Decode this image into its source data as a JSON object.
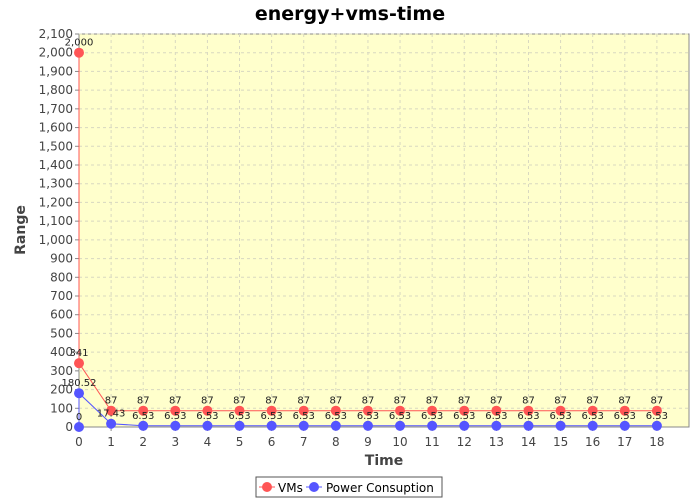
{
  "chart_data": {
    "type": "line",
    "title": "energy+vms-time",
    "xlabel": "Time",
    "ylabel": "Range",
    "xlim": [
      0,
      19
    ],
    "ylim": [
      0,
      2100
    ],
    "x_ticks": [
      0,
      1,
      2,
      3,
      4,
      5,
      6,
      7,
      8,
      9,
      10,
      11,
      12,
      13,
      14,
      15,
      16,
      17,
      18
    ],
    "y_ticks": [
      0,
      100,
      200,
      300,
      400,
      500,
      600,
      700,
      800,
      900,
      1000,
      1100,
      1200,
      1300,
      1400,
      1500,
      1600,
      1700,
      1800,
      1900,
      2000,
      2100
    ],
    "x_tick_labels": [
      "0",
      "1",
      "2",
      "3",
      "4",
      "5",
      "6",
      "7",
      "8",
      "9",
      "10",
      "11",
      "12",
      "13",
      "14",
      "15",
      "16",
      "17",
      "18"
    ],
    "y_tick_labels": [
      "0",
      "100",
      "200",
      "300",
      "400",
      "500",
      "600",
      "700",
      "800",
      "900",
      "1,000",
      "1,100",
      "1,200",
      "1,300",
      "1,400",
      "1,500",
      "1,600",
      "1,700",
      "1,800",
      "1,900",
      "2,000",
      "2,100"
    ],
    "grid": true,
    "legend_position": "bottom",
    "background_color": "#ffffcc",
    "series": [
      {
        "name": "VMs",
        "color": "#ff5555",
        "points": [
          {
            "x": 0,
            "y": 2000,
            "label": "2,000"
          },
          {
            "x": 0,
            "y": 341,
            "label": "341"
          },
          {
            "x": 1,
            "y": 87,
            "label": "87"
          },
          {
            "x": 2,
            "y": 87,
            "label": "87"
          },
          {
            "x": 3,
            "y": 87,
            "label": "87"
          },
          {
            "x": 4,
            "y": 87,
            "label": "87"
          },
          {
            "x": 5,
            "y": 87,
            "label": "87"
          },
          {
            "x": 6,
            "y": 87,
            "label": "87"
          },
          {
            "x": 7,
            "y": 87,
            "label": "87"
          },
          {
            "x": 8,
            "y": 87,
            "label": "87"
          },
          {
            "x": 9,
            "y": 87,
            "label": "87"
          },
          {
            "x": 10,
            "y": 87,
            "label": "87"
          },
          {
            "x": 11,
            "y": 87,
            "label": "87"
          },
          {
            "x": 12,
            "y": 87,
            "label": "87"
          },
          {
            "x": 13,
            "y": 87,
            "label": "87"
          },
          {
            "x": 14,
            "y": 87,
            "label": "87"
          },
          {
            "x": 15,
            "y": 87,
            "label": "87"
          },
          {
            "x": 16,
            "y": 87,
            "label": "87"
          },
          {
            "x": 17,
            "y": 87,
            "label": "87"
          },
          {
            "x": 18,
            "y": 87,
            "label": "87"
          }
        ]
      },
      {
        "name": "Power Consuption",
        "color": "#5555ff",
        "points": [
          {
            "x": 0,
            "y": 0,
            "label": "0"
          },
          {
            "x": 0,
            "y": 180.52,
            "label": "180.52"
          },
          {
            "x": 1,
            "y": 17.43,
            "label": "17.43"
          },
          {
            "x": 2,
            "y": 6.53,
            "label": "6.53"
          },
          {
            "x": 3,
            "y": 6.53,
            "label": "6.53"
          },
          {
            "x": 4,
            "y": 6.53,
            "label": "6.53"
          },
          {
            "x": 5,
            "y": 6.53,
            "label": "6.53"
          },
          {
            "x": 6,
            "y": 6.53,
            "label": "6.53"
          },
          {
            "x": 7,
            "y": 6.53,
            "label": "6.53"
          },
          {
            "x": 8,
            "y": 6.53,
            "label": "6.53"
          },
          {
            "x": 9,
            "y": 6.53,
            "label": "6.53"
          },
          {
            "x": 10,
            "y": 6.53,
            "label": "6.53"
          },
          {
            "x": 11,
            "y": 6.53,
            "label": "6.53"
          },
          {
            "x": 12,
            "y": 6.53,
            "label": "6.53"
          },
          {
            "x": 13,
            "y": 6.53,
            "label": "6.53"
          },
          {
            "x": 14,
            "y": 6.53,
            "label": "6.53"
          },
          {
            "x": 15,
            "y": 6.53,
            "label": "6.53"
          },
          {
            "x": 16,
            "y": 6.53,
            "label": "6.53"
          },
          {
            "x": 17,
            "y": 6.53,
            "label": "6.53"
          },
          {
            "x": 18,
            "y": 6.53,
            "label": "6.53"
          }
        ]
      }
    ]
  }
}
